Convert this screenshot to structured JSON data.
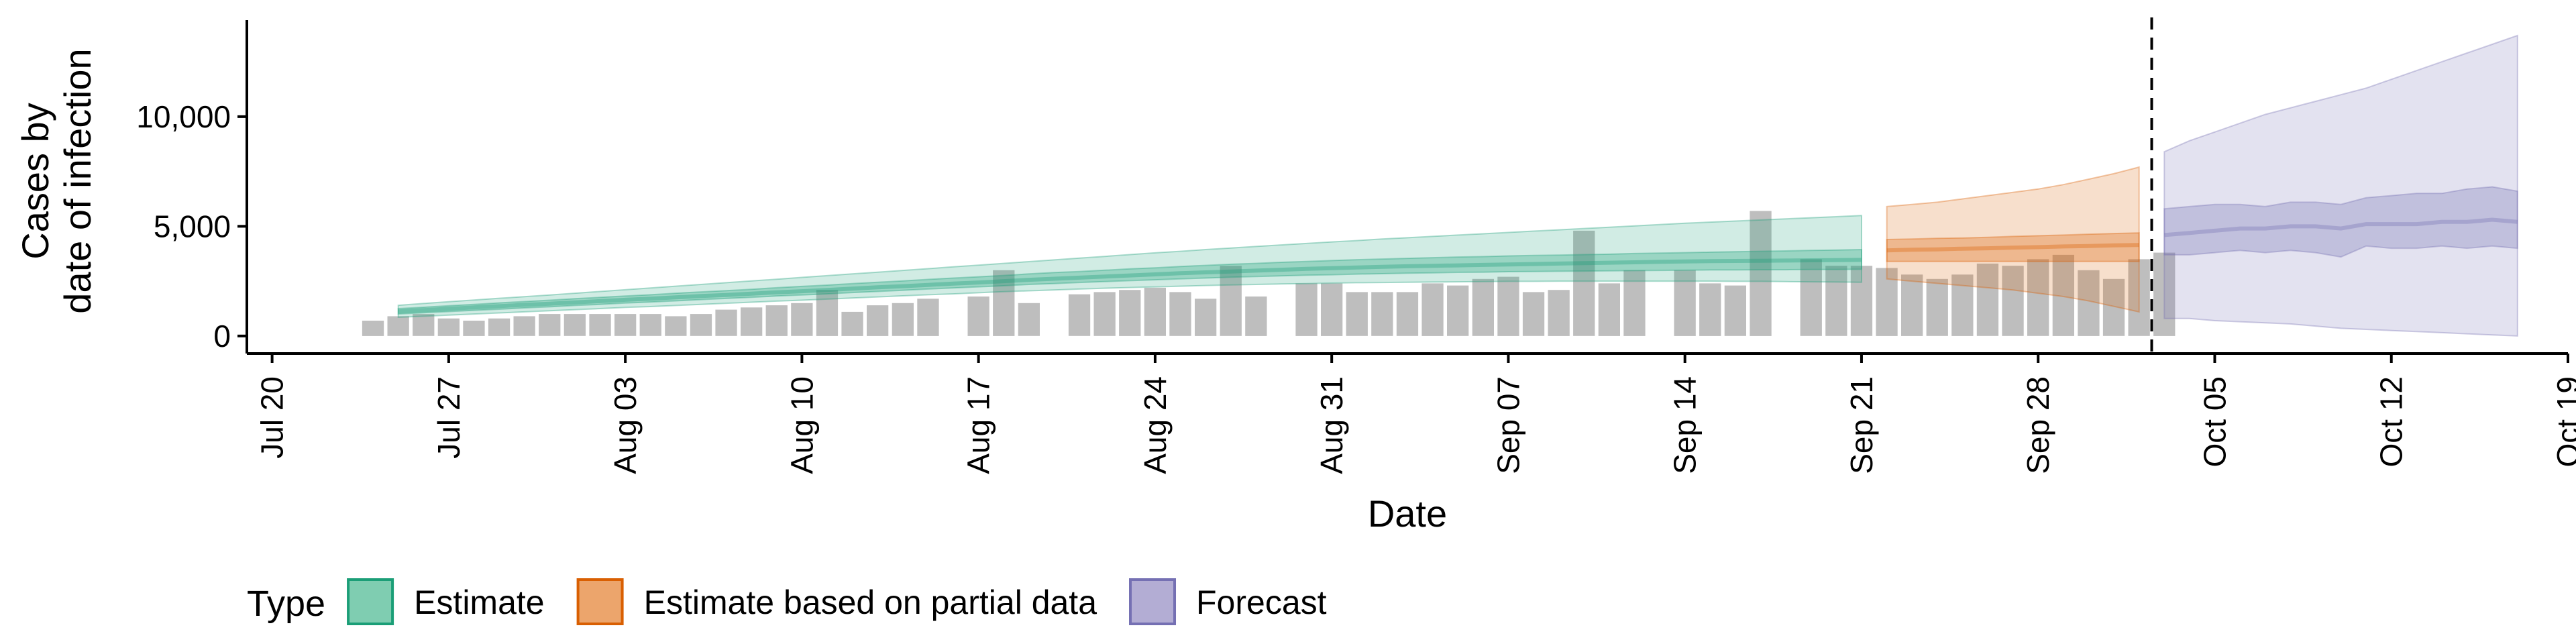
{
  "chart_data": {
    "type": "area",
    "ylabel": [
      "Cases by",
      "date of infection"
    ],
    "xlabel": "Date",
    "ylim": [
      -800,
      14400
    ],
    "yticks": [
      0,
      5000,
      10000
    ],
    "ytick_labels": [
      "0",
      "5,000",
      "10,000"
    ],
    "xlim": [
      "2020-07-19",
      "2020-10-19"
    ],
    "xticks": [
      "2020-07-20",
      "2020-07-27",
      "2020-08-03",
      "2020-08-10",
      "2020-08-17",
      "2020-08-24",
      "2020-08-31",
      "2020-09-07",
      "2020-09-14",
      "2020-09-21",
      "2020-09-28",
      "2020-10-05",
      "2020-10-12",
      "2020-10-19"
    ],
    "xtick_labels": [
      "Jul 20",
      "Jul 27",
      "Aug 03",
      "Aug 10",
      "Aug 17",
      "Aug 24",
      "Aug 31",
      "Sep 07",
      "Sep 14",
      "Sep 21",
      "Sep 28",
      "Oct 05",
      "Oct 12",
      "Oct 19"
    ],
    "vline_date": "2020-10-02",
    "grid": false,
    "legend": {
      "title": "Type",
      "position": "bottom",
      "items": [
        {
          "label": "Estimate",
          "fill": "#7fcdb1",
          "stroke": "#1b9e77"
        },
        {
          "label": "Estimate based on partial data",
          "fill": "#eca56c",
          "stroke": "#d95f02"
        },
        {
          "label": "Forecast",
          "fill": "#b3add4",
          "stroke": "#7570b3"
        }
      ]
    },
    "colors": {
      "estimate": "#1b9e77",
      "partial": "#d95f02",
      "forecast": "#7570b3",
      "bars": "#bebebe"
    },
    "reported_cases": {
      "start": "2020-07-24",
      "values": [
        700,
        900,
        1000,
        800,
        700,
        800,
        900,
        1000,
        1000,
        1000,
        1000,
        1000,
        900,
        1000,
        1200,
        1300,
        1400,
        1500,
        2100,
        1100,
        1400,
        1500,
        1700,
        0,
        1800,
        3000,
        1500,
        0,
        1900,
        2000,
        2100,
        2200,
        2000,
        1700,
        3200,
        1800,
        0,
        2400,
        2400,
        2000,
        2000,
        2000,
        2400,
        2300,
        2600,
        2700,
        2000,
        2100,
        4800,
        2400,
        3000,
        0,
        3000,
        2400,
        2300,
        5700,
        0,
        3500,
        3200,
        3200,
        3100,
        2800,
        2600,
        2800,
        3300,
        3200,
        3500,
        3700,
        3000,
        2600,
        3500,
        3800
      ]
    },
    "series": [
      {
        "name": "Estimate",
        "start": "2020-07-25",
        "median": [
          1120,
          1180,
          1240,
          1300,
          1360,
          1420,
          1470,
          1530,
          1590,
          1650,
          1700,
          1760,
          1820,
          1870,
          1930,
          1990,
          2040,
          2100,
          2160,
          2220,
          2270,
          2330,
          2390,
          2440,
          2500,
          2560,
          2610,
          2660,
          2710,
          2760,
          2810,
          2860,
          2900,
          2940,
          2980,
          3020,
          3060,
          3090,
          3120,
          3150,
          3180,
          3200,
          3220,
          3240,
          3260,
          3280,
          3300,
          3320,
          3340,
          3360,
          3380,
          3400,
          3410,
          3420,
          3430,
          3440,
          3450,
          3460,
          3470
        ],
        "lower50": [
          1000,
          1060,
          1110,
          1170,
          1220,
          1280,
          1330,
          1390,
          1440,
          1500,
          1550,
          1600,
          1660,
          1710,
          1760,
          1820,
          1870,
          1920,
          1980,
          2030,
          2080,
          2140,
          2190,
          2240,
          2290,
          2350,
          2390,
          2440,
          2480,
          2520,
          2560,
          2600,
          2640,
          2680,
          2710,
          2740,
          2770,
          2790,
          2820,
          2840,
          2860,
          2880,
          2900,
          2910,
          2930,
          2940,
          2950,
          2960,
          2970,
          2980,
          2990,
          3000,
          3010,
          3010,
          3020,
          3020,
          3030,
          3030,
          3040
        ],
        "upper50": [
          1250,
          1310,
          1380,
          1440,
          1510,
          1570,
          1630,
          1700,
          1760,
          1820,
          1880,
          1950,
          2010,
          2070,
          2130,
          2200,
          2260,
          2320,
          2390,
          2450,
          2510,
          2580,
          2640,
          2700,
          2760,
          2830,
          2890,
          2940,
          3000,
          3060,
          3110,
          3170,
          3220,
          3270,
          3310,
          3360,
          3400,
          3440,
          3480,
          3510,
          3540,
          3570,
          3600,
          3620,
          3650,
          3670,
          3690,
          3710,
          3730,
          3760,
          3780,
          3800,
          3820,
          3840,
          3860,
          3880,
          3900,
          3920,
          3940
        ],
        "lower90": [
          850,
          900,
          950,
          1000,
          1050,
          1100,
          1150,
          1200,
          1250,
          1300,
          1340,
          1390,
          1440,
          1490,
          1540,
          1590,
          1630,
          1680,
          1730,
          1780,
          1830,
          1880,
          1920,
          1970,
          2020,
          2060,
          2100,
          2140,
          2180,
          2210,
          2240,
          2270,
          2300,
          2330,
          2350,
          2370,
          2390,
          2410,
          2430,
          2440,
          2450,
          2460,
          2470,
          2480,
          2490,
          2490,
          2500,
          2500,
          2500,
          2500,
          2500,
          2500,
          2500,
          2490,
          2490,
          2480,
          2470,
          2460,
          2450
        ],
        "upper90": [
          1400,
          1480,
          1560,
          1640,
          1720,
          1790,
          1870,
          1950,
          2030,
          2110,
          2190,
          2270,
          2350,
          2430,
          2510,
          2590,
          2670,
          2750,
          2830,
          2910,
          2990,
          3070,
          3150,
          3230,
          3310,
          3390,
          3470,
          3550,
          3630,
          3710,
          3790,
          3860,
          3940,
          4010,
          4080,
          4150,
          4220,
          4290,
          4350,
          4420,
          4480,
          4540,
          4600,
          4660,
          4720,
          4780,
          4840,
          4900,
          4960,
          5020,
          5080,
          5140,
          5190,
          5240,
          5290,
          5340,
          5390,
          5440,
          5490
        ]
      },
      {
        "name": "Estimate based on partial data",
        "start": "2020-09-22",
        "median": [
          3900,
          3930,
          3950,
          3980,
          4000,
          4030,
          4050,
          4080,
          4100,
          4130,
          4150
        ],
        "lower50": [
          3400,
          3400,
          3400,
          3400,
          3400,
          3400,
          3400,
          3400,
          3400,
          3400,
          3400
        ],
        "upper50": [
          4400,
          4420,
          4450,
          4470,
          4500,
          4540,
          4570,
          4600,
          4640,
          4670,
          4700
        ],
        "lower90": [
          2600,
          2500,
          2400,
          2300,
          2200,
          2100,
          1950,
          1800,
          1600,
          1350,
          1100
        ],
        "upper90": [
          5900,
          6000,
          6100,
          6250,
          6400,
          6550,
          6700,
          6900,
          7150,
          7400,
          7700
        ]
      },
      {
        "name": "Forecast",
        "start": "2020-10-03",
        "median": [
          4600,
          4700,
          4800,
          4900,
          4900,
          5000,
          5000,
          4900,
          5100,
          5100,
          5100,
          5200,
          5200,
          5300,
          5200
        ],
        "lower50": [
          3700,
          3700,
          3800,
          3900,
          3800,
          3900,
          3800,
          3600,
          4100,
          4000,
          4000,
          4100,
          4000,
          4100,
          4000
        ],
        "upper50": [
          5800,
          5900,
          6000,
          6000,
          5900,
          6100,
          6100,
          6000,
          6300,
          6400,
          6500,
          6500,
          6700,
          6800,
          6600
        ],
        "lower90": [
          800,
          800,
          700,
          650,
          600,
          550,
          450,
          350,
          300,
          250,
          200,
          150,
          100,
          50,
          0
        ],
        "upper90": [
          8400,
          8900,
          9300,
          9700,
          10100,
          10400,
          10700,
          11000,
          11300,
          11700,
          12100,
          12500,
          12900,
          13300,
          13700
        ]
      }
    ]
  }
}
